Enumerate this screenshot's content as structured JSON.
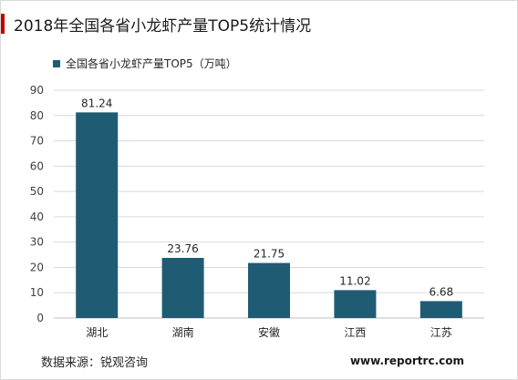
{
  "chart_data": {
    "type": "bar",
    "title": "2018年全国各省小龙虾产量TOP5统计情况",
    "categories": [
      "湖北",
      "湖南",
      "安徽",
      "江西",
      "江苏"
    ],
    "series": [
      {
        "name": "全国各省小龙虾产量TOP5（万吨）",
        "values": [
          81.24,
          23.76,
          21.75,
          11.02,
          6.68
        ],
        "color": "#1f5c73"
      }
    ],
    "ylim": [
      0,
      90
    ],
    "yticks": [
      0,
      10,
      20,
      30,
      40,
      50,
      60,
      70,
      80,
      90
    ],
    "xlabel": "",
    "ylabel": "",
    "grid": true,
    "legend_position": "top-left"
  },
  "source": "数据来源：锐观咨询",
  "website": "www.reportrc.com",
  "colors": {
    "accent": "#c00000",
    "bar": "#1f5c73",
    "grid": "#d9d9d9"
  }
}
